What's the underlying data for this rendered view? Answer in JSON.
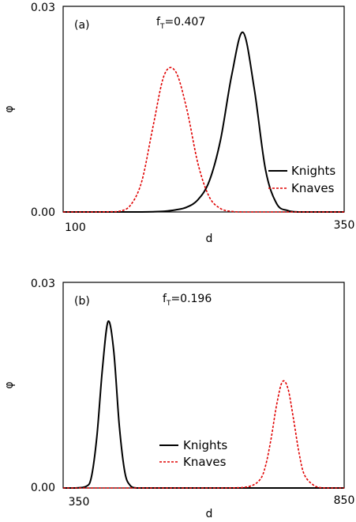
{
  "chart_data": [
    {
      "type": "line",
      "panel_label": "(a)",
      "annotation": {
        "prefix": "f",
        "subscript": "T",
        "value": "=0.407"
      },
      "xlabel": "d",
      "ylabel": "φ",
      "xlim": [
        100,
        350
      ],
      "ylim": [
        0,
        0.03
      ],
      "x_tick_labels": [
        "100",
        "350"
      ],
      "y_tick_labels": [
        "0.00",
        "0.03"
      ],
      "grid": false,
      "legend_position": "right",
      "x": [
        100,
        110,
        120,
        130,
        140,
        150,
        160,
        170,
        180,
        190,
        200,
        210,
        220,
        230,
        240,
        250,
        260,
        270,
        280,
        290,
        300,
        310,
        320,
        330,
        340,
        350
      ],
      "series": [
        {
          "name": "Knights",
          "color": "#000000",
          "dash": "solid",
          "values": [
            0,
            0,
            0,
            0,
            0,
            0,
            0,
            0,
            3e-05,
            0.0001,
            0.0003,
            0.0007,
            0.0018,
            0.0045,
            0.0105,
            0.02,
            0.0262,
            0.018,
            0.0062,
            0.0012,
            0.0002,
            0,
            0,
            0,
            0,
            0
          ]
        },
        {
          "name": "Knaves",
          "color": "#e00000",
          "dash": "dashed",
          "values": [
            0,
            0,
            0,
            0,
            3e-05,
            0.0001,
            0.001,
            0.0045,
            0.0125,
            0.02,
            0.0205,
            0.015,
            0.007,
            0.0022,
            0.0005,
            8e-05,
            0,
            0,
            0,
            0,
            0,
            0,
            0,
            0,
            0,
            0
          ]
        }
      ]
    },
    {
      "type": "line",
      "panel_label": "(b)",
      "annotation": {
        "prefix": "f",
        "subscript": "T",
        "value": "=0.196"
      },
      "xlabel": "d",
      "ylabel": "φ",
      "xlim": [
        350,
        850
      ],
      "ylim": [
        0,
        0.03
      ],
      "x_tick_labels": [
        "350",
        "850"
      ],
      "y_tick_labels": [
        "0.00",
        "0.03"
      ],
      "grid": false,
      "legend_position": "center",
      "x": [
        350,
        370,
        390,
        400,
        410,
        420,
        430,
        440,
        450,
        460,
        470,
        480,
        490,
        500,
        520,
        560,
        600,
        640,
        680,
        700,
        710,
        720,
        730,
        740,
        750,
        760,
        770,
        780,
        800,
        820,
        850
      ],
      "series": [
        {
          "name": "Knights",
          "color": "#000000",
          "dash": "solid",
          "values": [
            0,
            0,
            0.0002,
            0.0015,
            0.0075,
            0.0175,
            0.0243,
            0.02,
            0.009,
            0.0022,
            0.0003,
            0,
            0,
            0,
            0,
            0,
            0,
            0,
            0,
            0,
            0,
            0,
            0,
            0,
            0,
            0,
            0,
            0,
            0,
            0,
            0
          ]
        },
        {
          "name": "Knaves",
          "color": "#e00000",
          "dash": "dashed",
          "values": [
            0,
            0,
            0,
            0,
            0,
            0,
            0,
            0,
            0,
            0,
            0,
            0,
            0,
            0,
            0,
            0,
            0,
            0,
            0.0002,
            0.0012,
            0.0032,
            0.0072,
            0.0122,
            0.0155,
            0.0145,
            0.01,
            0.005,
            0.0018,
            0.0002,
            0,
            0
          ]
        }
      ]
    }
  ]
}
